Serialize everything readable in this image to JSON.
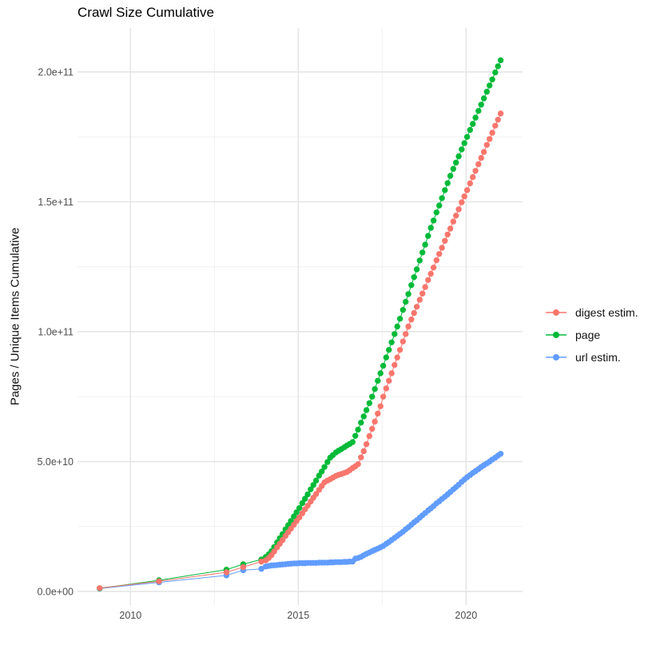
{
  "chart_data": {
    "type": "line",
    "title": "Crawl Size Cumulative",
    "xlabel": "",
    "ylabel": "Pages / Unique Items Cumulative",
    "values_unit": "1e9 (billions of items)",
    "x_domain": [
      2008.4,
      2021.7
    ],
    "y_domain_billions": [
      -8,
      215
    ],
    "grid": "on",
    "legend_position": "right",
    "x_ticks": {
      "major": [
        2010,
        2015,
        2020
      ],
      "minor": [
        2012.5,
        2017.5
      ],
      "labels": [
        "2010",
        "2015",
        "2020"
      ]
    },
    "y_ticks": {
      "major_billions": [
        0,
        50,
        100,
        150,
        200
      ],
      "minor_billions": [
        25,
        75,
        125,
        175
      ],
      "labels": [
        "0.0e+00",
        "5.0e+10",
        "1.0e+11",
        "1.5e+11",
        "2.0e+11"
      ]
    },
    "series": [
      {
        "name": "digest estim.",
        "color": "#F8766D",
        "points": [
          [
            2009.08,
            1.3
          ],
          [
            2010.85,
            3.9
          ],
          [
            2012.86,
            7.4
          ],
          [
            2013.36,
            9.4
          ],
          [
            2013.9,
            11.5
          ],
          [
            2014.03,
            12.0
          ],
          [
            2014.12,
            12.9
          ],
          [
            2014.2,
            14.0
          ],
          [
            2014.28,
            15.4
          ],
          [
            2014.37,
            17.0
          ],
          [
            2014.45,
            18.4
          ],
          [
            2014.53,
            19.8
          ],
          [
            2014.62,
            21.4
          ],
          [
            2014.7,
            22.8
          ],
          [
            2014.78,
            24.2
          ],
          [
            2014.87,
            25.7
          ],
          [
            2014.95,
            27.1
          ],
          [
            2015.03,
            28.5
          ],
          [
            2015.12,
            30.1
          ],
          [
            2015.2,
            31.6
          ],
          [
            2015.28,
            33.0
          ],
          [
            2015.37,
            34.6
          ],
          [
            2015.45,
            36.1
          ],
          [
            2015.53,
            37.5
          ],
          [
            2015.62,
            39.1
          ],
          [
            2015.7,
            40.6
          ],
          [
            2015.78,
            42.0
          ],
          [
            2015.87,
            42.7
          ],
          [
            2015.95,
            43.2
          ],
          [
            2016.03,
            43.8
          ],
          [
            2016.12,
            44.5
          ],
          [
            2016.2,
            44.9
          ],
          [
            2016.28,
            45.2
          ],
          [
            2016.37,
            45.6
          ],
          [
            2016.45,
            46.0
          ],
          [
            2016.53,
            46.7
          ],
          [
            2016.62,
            47.5
          ],
          [
            2016.7,
            48.2
          ],
          [
            2016.78,
            49.0
          ],
          [
            2016.87,
            51.6
          ],
          [
            2016.95,
            54.0
          ],
          [
            2017.03,
            56.7
          ],
          [
            2017.12,
            59.8
          ],
          [
            2017.2,
            62.6
          ],
          [
            2017.28,
            65.4
          ],
          [
            2017.37,
            68.5
          ],
          [
            2017.45,
            71.3
          ],
          [
            2017.53,
            75.0
          ],
          [
            2017.62,
            78.2
          ],
          [
            2017.7,
            81.1
          ],
          [
            2017.78,
            84.0
          ],
          [
            2017.87,
            87.2
          ],
          [
            2017.95,
            90.1
          ],
          [
            2018.03,
            93.0
          ],
          [
            2018.12,
            96.2
          ],
          [
            2018.2,
            99.1
          ],
          [
            2018.28,
            102.0
          ],
          [
            2018.37,
            104.7
          ],
          [
            2018.45,
            107.2
          ],
          [
            2018.53,
            109.6
          ],
          [
            2018.62,
            112.3
          ],
          [
            2018.7,
            114.7
          ],
          [
            2018.78,
            117.2
          ],
          [
            2018.87,
            119.9
          ],
          [
            2018.95,
            122.3
          ],
          [
            2019.03,
            124.7
          ],
          [
            2019.12,
            127.5
          ],
          [
            2019.2,
            129.9
          ],
          [
            2019.28,
            132.3
          ],
          [
            2019.37,
            135.0
          ],
          [
            2019.45,
            137.4
          ],
          [
            2019.53,
            139.7
          ],
          [
            2019.62,
            142.4
          ],
          [
            2019.7,
            144.7
          ],
          [
            2019.78,
            147.1
          ],
          [
            2019.87,
            149.8
          ],
          [
            2019.95,
            152.1
          ],
          [
            2020.03,
            154.5
          ],
          [
            2020.12,
            157.1
          ],
          [
            2020.2,
            159.5
          ],
          [
            2020.28,
            161.9
          ],
          [
            2020.37,
            164.5
          ],
          [
            2020.45,
            166.9
          ],
          [
            2020.53,
            169.2
          ],
          [
            2020.62,
            171.9
          ],
          [
            2020.7,
            174.2
          ],
          [
            2020.78,
            176.6
          ],
          [
            2020.87,
            179.3
          ],
          [
            2020.95,
            181.6
          ],
          [
            2021.03,
            184.0
          ]
        ]
      },
      {
        "name": "page",
        "color": "#00BA38",
        "points": [
          [
            2009.08,
            1.2
          ],
          [
            2010.85,
            4.3
          ],
          [
            2012.86,
            8.4
          ],
          [
            2013.36,
            10.5
          ],
          [
            2013.9,
            12.3
          ],
          [
            2014.03,
            13.3
          ],
          [
            2014.12,
            14.3
          ],
          [
            2014.2,
            15.5
          ],
          [
            2014.28,
            17.1
          ],
          [
            2014.37,
            18.9
          ],
          [
            2014.45,
            20.5
          ],
          [
            2014.53,
            22.1
          ],
          [
            2014.62,
            23.9
          ],
          [
            2014.7,
            25.5
          ],
          [
            2014.78,
            27.1
          ],
          [
            2014.87,
            28.9
          ],
          [
            2014.95,
            30.5
          ],
          [
            2015.03,
            32.1
          ],
          [
            2015.12,
            34.0
          ],
          [
            2015.2,
            35.7
          ],
          [
            2015.28,
            37.4
          ],
          [
            2015.37,
            39.3
          ],
          [
            2015.45,
            41.0
          ],
          [
            2015.53,
            42.7
          ],
          [
            2015.62,
            44.6
          ],
          [
            2015.7,
            46.2
          ],
          [
            2015.78,
            47.9
          ],
          [
            2015.87,
            49.8
          ],
          [
            2015.95,
            51.5
          ],
          [
            2016.03,
            52.5
          ],
          [
            2016.12,
            53.5
          ],
          [
            2016.2,
            54.2
          ],
          [
            2016.28,
            54.8
          ],
          [
            2016.37,
            55.5
          ],
          [
            2016.45,
            56.2
          ],
          [
            2016.53,
            56.8
          ],
          [
            2016.62,
            57.5
          ],
          [
            2016.7,
            59.9
          ],
          [
            2016.78,
            62.3
          ],
          [
            2016.87,
            65.0
          ],
          [
            2016.95,
            67.4
          ],
          [
            2017.03,
            69.8
          ],
          [
            2017.12,
            72.5
          ],
          [
            2017.2,
            75.0
          ],
          [
            2017.28,
            77.9
          ],
          [
            2017.37,
            81.1
          ],
          [
            2017.45,
            84.0
          ],
          [
            2017.53,
            86.9
          ],
          [
            2017.62,
            90.1
          ],
          [
            2017.7,
            93.0
          ],
          [
            2017.78,
            95.9
          ],
          [
            2017.87,
            99.1
          ],
          [
            2017.95,
            102.0
          ],
          [
            2018.03,
            105.0
          ],
          [
            2018.12,
            108.4
          ],
          [
            2018.2,
            111.5
          ],
          [
            2018.28,
            114.5
          ],
          [
            2018.37,
            117.9
          ],
          [
            2018.45,
            121.0
          ],
          [
            2018.53,
            124.0
          ],
          [
            2018.62,
            127.4
          ],
          [
            2018.7,
            130.5
          ],
          [
            2018.78,
            133.5
          ],
          [
            2018.87,
            136.9
          ],
          [
            2018.95,
            140.0
          ],
          [
            2019.03,
            142.8
          ],
          [
            2019.12,
            145.9
          ],
          [
            2019.2,
            148.6
          ],
          [
            2019.28,
            151.4
          ],
          [
            2019.37,
            154.5
          ],
          [
            2019.45,
            157.2
          ],
          [
            2019.53,
            160.0
          ],
          [
            2019.62,
            162.7
          ],
          [
            2019.7,
            165.1
          ],
          [
            2019.78,
            167.5
          ],
          [
            2019.87,
            170.2
          ],
          [
            2019.95,
            172.6
          ],
          [
            2020.03,
            175.0
          ],
          [
            2020.12,
            177.7
          ],
          [
            2020.2,
            180.0
          ],
          [
            2020.28,
            182.4
          ],
          [
            2020.37,
            185.0
          ],
          [
            2020.45,
            187.4
          ],
          [
            2020.53,
            189.8
          ],
          [
            2020.62,
            192.4
          ],
          [
            2020.7,
            194.8
          ],
          [
            2020.78,
            197.1
          ],
          [
            2020.87,
            199.8
          ],
          [
            2020.95,
            202.2
          ],
          [
            2021.03,
            204.5
          ]
        ]
      },
      {
        "name": "url estim.",
        "color": "#619CFF",
        "points": [
          [
            2009.08,
            1.1
          ],
          [
            2010.85,
            3.5
          ],
          [
            2012.86,
            6.2
          ],
          [
            2013.36,
            8.2
          ],
          [
            2013.9,
            8.7
          ],
          [
            2014.03,
            9.6
          ],
          [
            2014.12,
            9.8
          ],
          [
            2014.2,
            10.0
          ],
          [
            2014.28,
            10.1
          ],
          [
            2014.37,
            10.2
          ],
          [
            2014.45,
            10.3
          ],
          [
            2014.53,
            10.4
          ],
          [
            2014.62,
            10.5
          ],
          [
            2014.7,
            10.6
          ],
          [
            2014.78,
            10.7
          ],
          [
            2014.87,
            10.8
          ],
          [
            2014.95,
            10.8
          ],
          [
            2015.03,
            10.9
          ],
          [
            2015.12,
            10.9
          ],
          [
            2015.2,
            10.9
          ],
          [
            2015.28,
            11.0
          ],
          [
            2015.37,
            11.0
          ],
          [
            2015.45,
            11.0
          ],
          [
            2015.53,
            11.0
          ],
          [
            2015.62,
            11.1
          ],
          [
            2015.7,
            11.1
          ],
          [
            2015.78,
            11.1
          ],
          [
            2015.87,
            11.1
          ],
          [
            2015.95,
            11.2
          ],
          [
            2016.03,
            11.2
          ],
          [
            2016.12,
            11.3
          ],
          [
            2016.2,
            11.3
          ],
          [
            2016.28,
            11.3
          ],
          [
            2016.37,
            11.4
          ],
          [
            2016.45,
            11.4
          ],
          [
            2016.53,
            11.5
          ],
          [
            2016.62,
            11.5
          ],
          [
            2016.7,
            12.6
          ],
          [
            2016.78,
            12.9
          ],
          [
            2016.87,
            13.3
          ],
          [
            2016.95,
            13.9
          ],
          [
            2017.03,
            14.5
          ],
          [
            2017.12,
            15.0
          ],
          [
            2017.2,
            15.5
          ],
          [
            2017.28,
            16.0
          ],
          [
            2017.37,
            16.5
          ],
          [
            2017.45,
            17.0
          ],
          [
            2017.53,
            17.5
          ],
          [
            2017.62,
            18.3
          ],
          [
            2017.7,
            19.0
          ],
          [
            2017.78,
            19.8
          ],
          [
            2017.87,
            20.6
          ],
          [
            2017.95,
            21.4
          ],
          [
            2018.03,
            22.2
          ],
          [
            2018.12,
            23.0
          ],
          [
            2018.2,
            23.9
          ],
          [
            2018.28,
            24.7
          ],
          [
            2018.37,
            25.7
          ],
          [
            2018.45,
            26.6
          ],
          [
            2018.53,
            27.4
          ],
          [
            2018.62,
            28.4
          ],
          [
            2018.7,
            29.3
          ],
          [
            2018.78,
            30.2
          ],
          [
            2018.87,
            31.2
          ],
          [
            2018.95,
            32.0
          ],
          [
            2019.03,
            32.9
          ],
          [
            2019.12,
            33.9
          ],
          [
            2019.2,
            34.7
          ],
          [
            2019.28,
            35.6
          ],
          [
            2019.37,
            36.5
          ],
          [
            2019.45,
            37.4
          ],
          [
            2019.53,
            38.3
          ],
          [
            2019.62,
            39.3
          ],
          [
            2019.7,
            40.2
          ],
          [
            2019.78,
            41.1
          ],
          [
            2019.87,
            42.2
          ],
          [
            2019.95,
            43.1
          ],
          [
            2020.03,
            44.0
          ],
          [
            2020.12,
            44.8
          ],
          [
            2020.2,
            45.6
          ],
          [
            2020.28,
            46.3
          ],
          [
            2020.37,
            47.1
          ],
          [
            2020.45,
            47.9
          ],
          [
            2020.53,
            48.6
          ],
          [
            2020.62,
            49.3
          ],
          [
            2020.7,
            50.0
          ],
          [
            2020.78,
            50.8
          ],
          [
            2020.87,
            51.5
          ],
          [
            2020.95,
            52.3
          ],
          [
            2021.03,
            53.0
          ]
        ]
      }
    ],
    "colors": {
      "grid_major": "#E4E4E4",
      "grid_minor": "#F0F0F0",
      "tick_text": "#4D4D4D",
      "title_text": "#000000"
    }
  }
}
